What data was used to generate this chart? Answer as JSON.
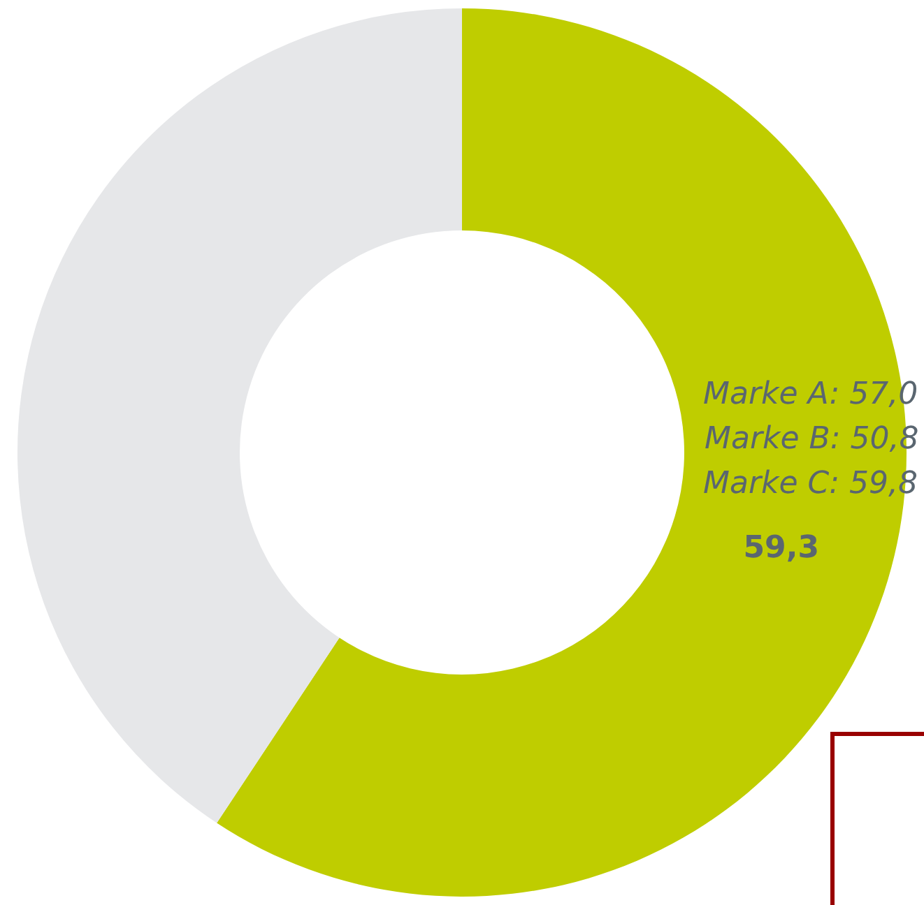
{
  "chart_data": {
    "type": "donut",
    "categories": [
      null,
      null
    ],
    "values": [
      59.3,
      40.7
    ],
    "colors": [
      "#bfcd00",
      "#e6e7e9"
    ],
    "value_labels": [
      "59,3",
      null
    ],
    "annotations": [
      "Marke A: 57,0",
      "Marke B: 50,8",
      "Marke C: 59,8"
    ],
    "legend": false
  }
}
